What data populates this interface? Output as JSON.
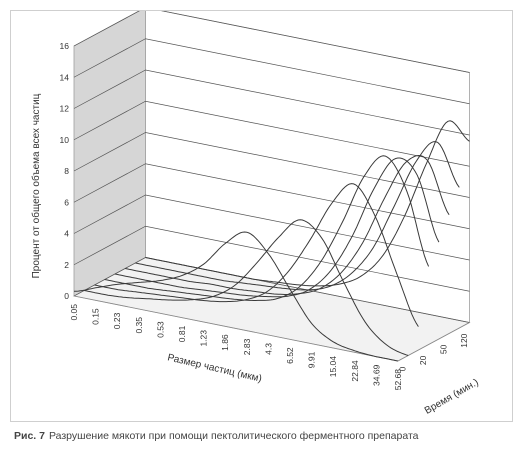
{
  "caption": {
    "label": "Рис. 7",
    "text": "Разрушение мякоти при помощи пектолитического ферментного препарата"
  },
  "chart_data": {
    "type": "line",
    "style": "3d-waterfall",
    "title": "",
    "ylabel": "Процент от общего объема всех частиц",
    "xlabel": "Размер частиц (мкм)",
    "zlabel": "Время (мин.)",
    "ylim": [
      0,
      16
    ],
    "y_ticks": [
      "0",
      "2",
      "4",
      "6",
      "8",
      "10",
      "12",
      "14",
      "16"
    ],
    "x_ticks": [
      "0.05",
      "0.15",
      "0.23",
      "0.35",
      "0.53",
      "0.81",
      "1.23",
      "1.86",
      "2.83",
      "4.3",
      "6.52",
      "9.91",
      "15.04",
      "22.84",
      "34.69",
      "52.68"
    ],
    "z_ticks": [
      "0",
      "20",
      "50",
      "120"
    ],
    "grid": true,
    "series": [
      {
        "time_index": 0,
        "values": [
          0.3,
          0.8,
          1.3,
          1.7,
          2.1,
          2.7,
          3.7,
          5.3,
          6.3,
          5.2,
          3.2,
          1.3,
          0.4,
          0.1,
          0,
          0
        ]
      },
      {
        "time_index": 1,
        "values": [
          0,
          0,
          0.1,
          0.3,
          0.5,
          0.8,
          1.3,
          2.3,
          4.0,
          5.9,
          7.3,
          6.4,
          3.9,
          1.6,
          0.4,
          0
        ]
      },
      {
        "time_index": 2,
        "values": [
          0,
          0,
          0.1,
          0.2,
          0.3,
          0.4,
          0.6,
          1.0,
          1.8,
          3.4,
          5.7,
          8.3,
          9.8,
          8.0,
          4.6,
          1.5
        ]
      },
      {
        "time_index": 3,
        "values": [
          0,
          0,
          0,
          0.1,
          0.2,
          0.3,
          0.4,
          0.6,
          1.0,
          2.0,
          3.9,
          6.7,
          9.9,
          11.5,
          9.5,
          5.0
        ]
      },
      {
        "time_index": 4,
        "values": [
          0,
          0,
          0,
          0,
          0.1,
          0.2,
          0.3,
          0.5,
          0.8,
          1.5,
          3.0,
          5.5,
          8.8,
          11.0,
          10.2,
          6.2
        ]
      },
      {
        "time_index": 5,
        "values": [
          0,
          0,
          0,
          0,
          0.1,
          0.1,
          0.2,
          0.3,
          0.6,
          1.2,
          2.5,
          4.7,
          7.8,
          10.4,
          10.8,
          7.6
        ]
      },
      {
        "time_index": 6,
        "values": [
          0,
          0,
          0,
          0,
          0,
          0.1,
          0.2,
          0.3,
          0.5,
          1.0,
          2.1,
          4.0,
          7.0,
          10.1,
          11.6,
          9.0
        ]
      },
      {
        "time_index": 7,
        "values": [
          0,
          0,
          0,
          0,
          0,
          0,
          0.1,
          0.2,
          0.4,
          0.8,
          1.6,
          3.2,
          6.0,
          9.6,
          12.6,
          11.6
        ]
      }
    ]
  }
}
